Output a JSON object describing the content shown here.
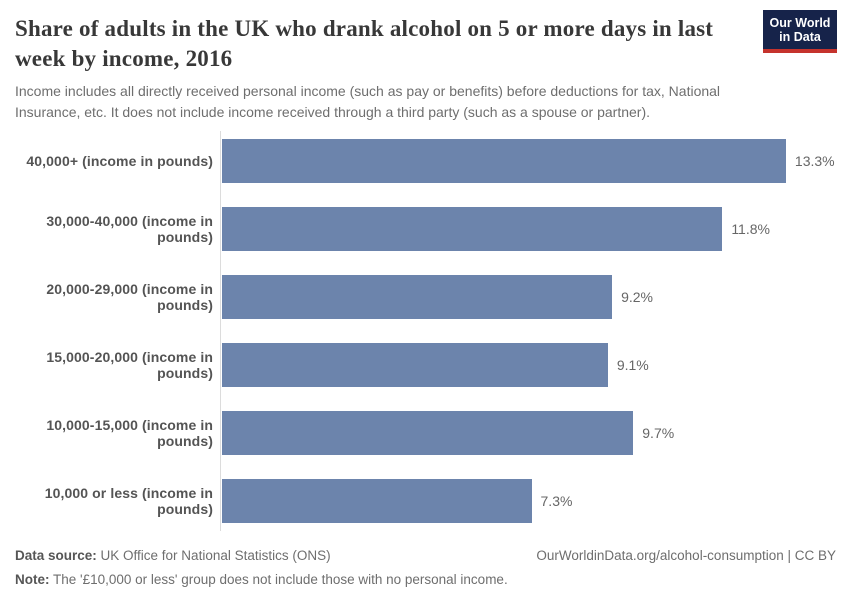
{
  "header": {
    "title": "Share of adults in the UK who drank alcohol on 5 or more days in last week by income, 2016",
    "subtitle": "Income includes all directly received personal income (such as pay or benefits) before deductions for tax, National Insurance, etc. It does not include income received through a third party (such as a spouse or partner)."
  },
  "logo": {
    "line1": "Our World",
    "line2": "in Data",
    "background_color": "#16234a",
    "stripe_color": "#c5332d"
  },
  "chart_data": {
    "type": "bar",
    "orientation": "horizontal",
    "title": "Share of adults in the UK who drank alcohol on 5 or more days in last week by income, 2016",
    "categories": [
      "40,000+ (income in pounds)",
      "30,000-40,000 (income in pounds)",
      "20,000-29,000 (income in pounds)",
      "15,000-20,000 (income in pounds)",
      "10,000-15,000 (income in pounds)",
      "10,000 or less (income in pounds)"
    ],
    "values": [
      13.3,
      11.8,
      9.2,
      9.1,
      9.7,
      7.3
    ],
    "value_labels": [
      "13.3%",
      "11.8%",
      "9.2%",
      "9.1%",
      "9.7%",
      "7.3%"
    ],
    "xlabel": "",
    "ylabel": "",
    "xlim": [
      0,
      14.6
    ],
    "grid": false,
    "legend": "none",
    "bar_color": "#6c84ac",
    "axis_line_color": "#dcdcdc"
  },
  "footer": {
    "datasource_label": "Data source:",
    "datasource_text": " UK Office for National Statistics (ONS)",
    "note_label": "Note:",
    "note_text": " The '£10,000 or less' group does not include those with no personal income.",
    "link": "OurWorldinData.org/alcohol-consumption | CC BY"
  }
}
